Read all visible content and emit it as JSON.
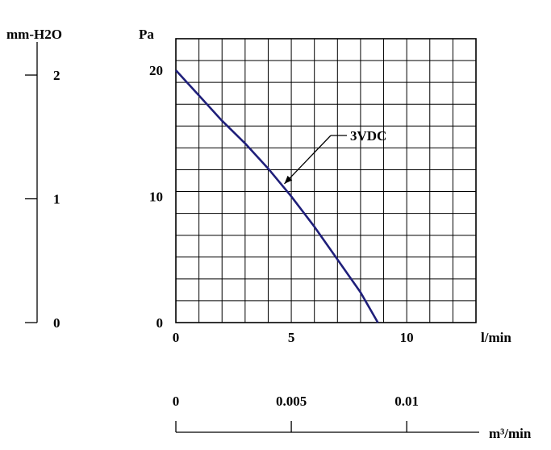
{
  "chart_data": {
    "type": "line",
    "xlabel": "l/min",
    "ylabel": "Pa",
    "xlim": [
      0,
      13
    ],
    "ylim": [
      0,
      22.5
    ],
    "x_ticks": [
      "0",
      "5",
      "10"
    ],
    "x_tick_values": [
      0,
      5,
      10
    ],
    "y_ticks": [
      "0",
      "10",
      "20"
    ],
    "y_tick_values": [
      0,
      10,
      20
    ],
    "grid": true,
    "colors": {
      "series": "#1f1f7a",
      "grid": "#000000"
    },
    "series": [
      {
        "name": "3VDC",
        "x": [
          0,
          1.0,
          2.0,
          3.0,
          4.0,
          5.0,
          6.0,
          7.0,
          8.0,
          8.75
        ],
        "y": [
          20.0,
          18.0,
          16.0,
          14.2,
          12.2,
          10.0,
          7.6,
          5.0,
          2.4,
          0
        ]
      }
    ],
    "annotation": {
      "text": "3VDC",
      "x": 4.7,
      "y": 11.0
    },
    "secondary_y": {
      "label": "mm-H2O",
      "ticks": [
        "0",
        "1",
        "2"
      ],
      "tick_values": [
        0,
        1,
        2
      ]
    },
    "secondary_x": {
      "label": "m³/min",
      "ticks": [
        "0",
        "0.005",
        "0.01"
      ],
      "tick_values": [
        0,
        0.005,
        0.01
      ]
    }
  }
}
